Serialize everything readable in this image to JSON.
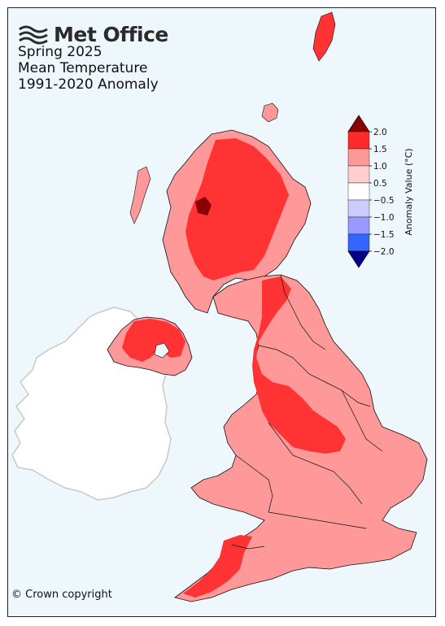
{
  "logo": {
    "text": "Met Office",
    "icon": "met-office-wave-logo"
  },
  "title": {
    "line1": "Spring 2025",
    "line2": "Mean Temperature",
    "line3": "1991-2020 Anomaly"
  },
  "colorbar": {
    "label": "Anomaly Value (°C)",
    "ticks": [
      "2.0",
      "1.5",
      "1.0",
      "0.5",
      "−0.5",
      "−1.0",
      "−1.5",
      "−2.0"
    ],
    "colors": [
      "#ff2b2b",
      "#ff9999",
      "#ffcfcf",
      "#ffffff",
      "#ccccff",
      "#9999ff",
      "#3366ff"
    ],
    "over_color": "#8b0000",
    "under_color": "#00008b"
  },
  "copyright": "© Crown copyright",
  "colors": {
    "background": "#eef7fb",
    "ireland": "#ffffff",
    "anomaly_1_0_to_1_5": "#ff9999",
    "anomaly_1_5_to_2_0": "#ff3333",
    "anomaly_over_2_0": "#8b0000"
  }
}
